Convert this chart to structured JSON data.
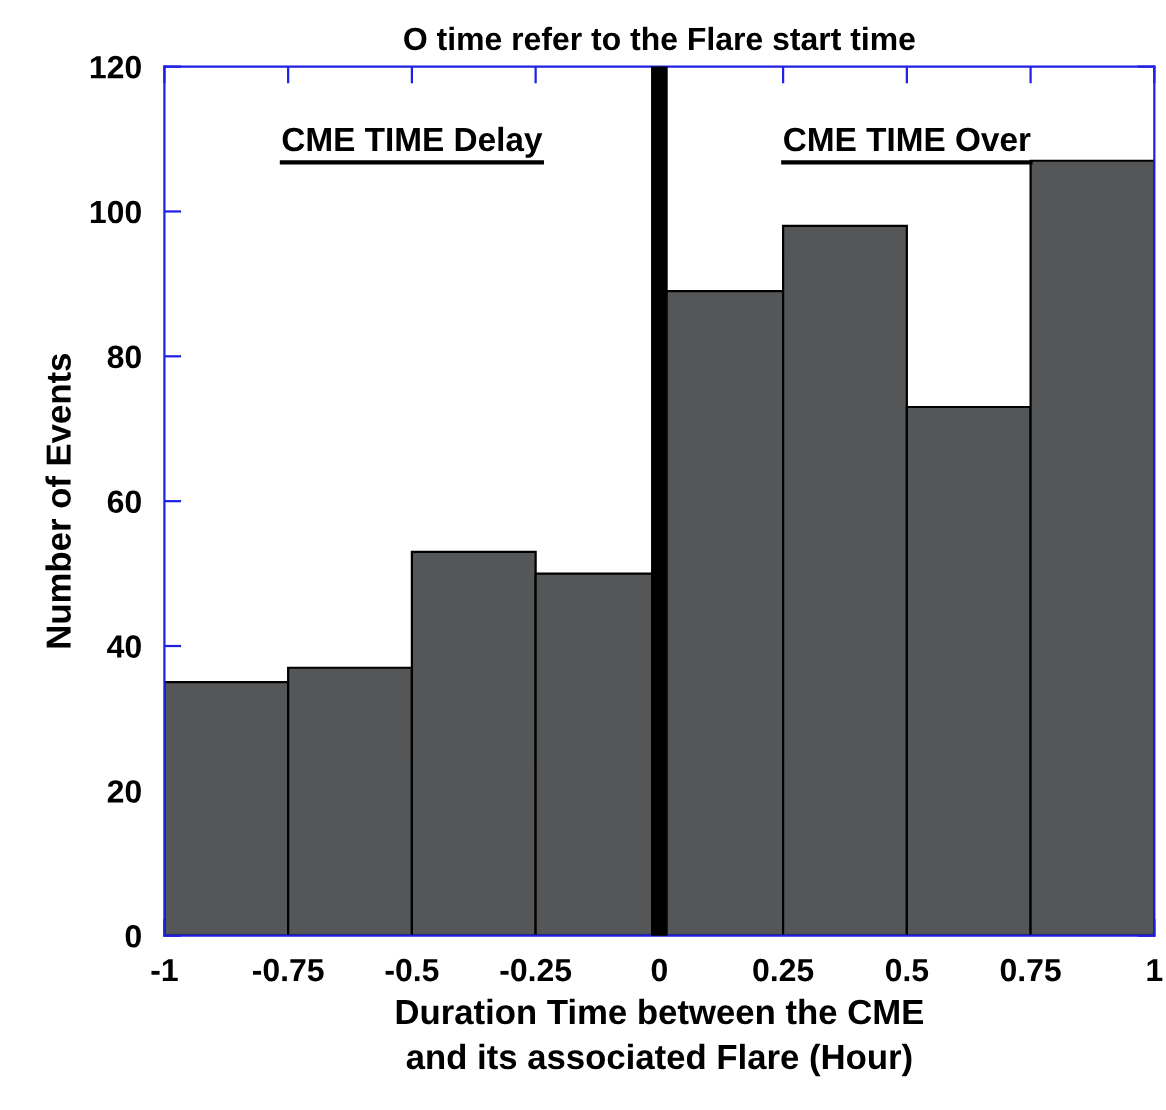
{
  "chart_data": {
    "type": "histogram",
    "title": "O time refer to the Flare start time",
    "xlabel": "Duration Time between the CME\nand its associated Flare (Hour)",
    "ylabel": "Number of Events",
    "bins": [
      -1,
      -0.75,
      -0.5,
      -0.25,
      0,
      0.25,
      0.5,
      0.75,
      1
    ],
    "values": [
      35,
      37,
      53,
      50,
      89,
      98,
      73,
      107
    ],
    "color": "#555658",
    "xlim": [
      -1,
      1
    ],
    "xticks": [
      -1,
      -0.75,
      -0.5,
      -0.25,
      0,
      0.25,
      0.5,
      0.75,
      1
    ],
    "ylim": [
      0,
      120
    ],
    "yticks": [
      0,
      20,
      40,
      60,
      80,
      100,
      120
    ],
    "ref_lines": [
      {
        "axis": "x",
        "value": 0,
        "color": "#000000"
      }
    ],
    "annotations": [
      "CME TIME Delay",
      "CME TIME Over"
    ],
    "grid": false
  }
}
